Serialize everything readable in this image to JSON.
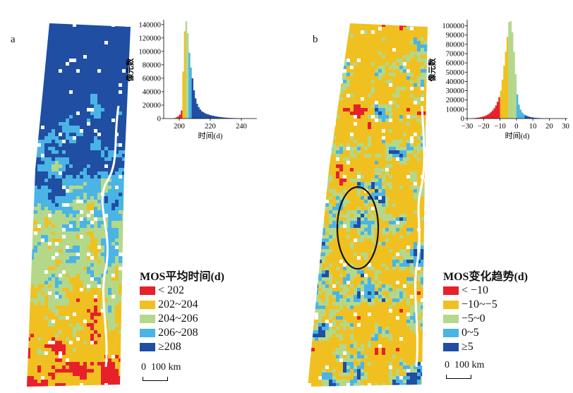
{
  "panels": [
    {
      "letter": "a",
      "map": {
        "color_scheme": "mean-time"
      },
      "histogram": {
        "ylabel": "像元数",
        "xlabel": "时间(d)",
        "xlim": [
          190,
          250
        ],
        "ylim": [
          0,
          145000
        ],
        "xticks": [
          200,
          220,
          240
        ],
        "yticks": [
          0,
          20000,
          40000,
          60000,
          80000,
          100000,
          120000,
          140000
        ],
        "bars": [
          {
            "x": 196,
            "y": 400
          },
          {
            "x": 197,
            "y": 1000
          },
          {
            "x": 198,
            "y": 2000
          },
          {
            "x": 199,
            "y": 3500
          },
          {
            "x": 200,
            "y": 6000
          },
          {
            "x": 201,
            "y": 12000
          },
          {
            "x": 202,
            "y": 70000
          },
          {
            "x": 203,
            "y": 130000
          },
          {
            "x": 204,
            "y": 145000
          },
          {
            "x": 205,
            "y": 127000
          },
          {
            "x": 206,
            "y": 98000
          },
          {
            "x": 207,
            "y": 76000
          },
          {
            "x": 208,
            "y": 60000
          },
          {
            "x": 209,
            "y": 42000
          },
          {
            "x": 210,
            "y": 30000
          },
          {
            "x": 211,
            "y": 22000
          },
          {
            "x": 212,
            "y": 17000
          },
          {
            "x": 213,
            "y": 13500
          },
          {
            "x": 214,
            "y": 11000
          },
          {
            "x": 215,
            "y": 9500
          },
          {
            "x": 216,
            "y": 8000
          },
          {
            "x": 217,
            "y": 7000
          },
          {
            "x": 218,
            "y": 6200
          },
          {
            "x": 219,
            "y": 5500
          },
          {
            "x": 220,
            "y": 4800
          },
          {
            "x": 221,
            "y": 4200
          },
          {
            "x": 222,
            "y": 3800
          },
          {
            "x": 223,
            "y": 3300
          },
          {
            "x": 224,
            "y": 2900
          },
          {
            "x": 225,
            "y": 2500
          },
          {
            "x": 226,
            "y": 2200
          },
          {
            "x": 227,
            "y": 1900
          },
          {
            "x": 228,
            "y": 1600
          },
          {
            "x": 229,
            "y": 1400
          },
          {
            "x": 230,
            "y": 1200
          },
          {
            "x": 231,
            "y": 1000
          },
          {
            "x": 232,
            "y": 900
          },
          {
            "x": 233,
            "y": 800
          },
          {
            "x": 234,
            "y": 700
          },
          {
            "x": 235,
            "y": 600
          },
          {
            "x": 236,
            "y": 500
          },
          {
            "x": 237,
            "y": 400
          },
          {
            "x": 238,
            "y": 350
          },
          {
            "x": 239,
            "y": 300
          },
          {
            "x": 240,
            "y": 250
          },
          {
            "x": 241,
            "y": 200
          },
          {
            "x": 242,
            "y": 150
          },
          {
            "x": 243,
            "y": 120
          }
        ]
      },
      "legend": {
        "title": "MOS平均时间(d)",
        "items": [
          {
            "color": "#e8202a",
            "label": "< 202"
          },
          {
            "color": "#f0c020",
            "label": "202~204"
          },
          {
            "color": "#b4d88a",
            "label": "204~206"
          },
          {
            "color": "#4ab4e6",
            "label": "206~208"
          },
          {
            "color": "#1f4ea3",
            "label": "≥208"
          }
        ]
      },
      "scalebar": {
        "zero": "0",
        "distance": "100 km"
      }
    },
    {
      "letter": "b",
      "map": {
        "color_scheme": "change-trend",
        "annotation": "ellipse"
      },
      "histogram": {
        "ylabel": "像元数",
        "xlabel": "时间(d)",
        "xlim": [
          -30,
          31
        ],
        "ylim": [
          0,
          105000
        ],
        "xticks": [
          -30,
          -20,
          -10,
          0,
          10,
          20,
          30
        ],
        "yticks": [
          0,
          10000,
          20000,
          30000,
          40000,
          50000,
          60000,
          70000,
          80000,
          90000,
          100000
        ],
        "bars": [
          {
            "x": -27,
            "y": 300
          },
          {
            "x": -26,
            "y": 500
          },
          {
            "x": -25,
            "y": 700
          },
          {
            "x": -24,
            "y": 900
          },
          {
            "x": -23,
            "y": 1200
          },
          {
            "x": -22,
            "y": 1600
          },
          {
            "x": -21,
            "y": 2000
          },
          {
            "x": -20,
            "y": 2600
          },
          {
            "x": -19,
            "y": 3300
          },
          {
            "x": -18,
            "y": 4200
          },
          {
            "x": -17,
            "y": 5300
          },
          {
            "x": -16,
            "y": 6800
          },
          {
            "x": -15,
            "y": 8600
          },
          {
            "x": -14,
            "y": 11000
          },
          {
            "x": -13,
            "y": 14000
          },
          {
            "x": -12,
            "y": 18000
          },
          {
            "x": -11,
            "y": 23000
          },
          {
            "x": -10,
            "y": 30000
          },
          {
            "x": -9,
            "y": 42000
          },
          {
            "x": -8,
            "y": 57000
          },
          {
            "x": -7,
            "y": 72000
          },
          {
            "x": -6,
            "y": 88000
          },
          {
            "x": -5,
            "y": 104000
          },
          {
            "x": -4,
            "y": 105000
          },
          {
            "x": -3,
            "y": 93000
          },
          {
            "x": -2,
            "y": 72000
          },
          {
            "x": -1,
            "y": 48000
          },
          {
            "x": 0,
            "y": 26000
          },
          {
            "x": 1,
            "y": 15000
          },
          {
            "x": 2,
            "y": 9500
          },
          {
            "x": 3,
            "y": 6500
          },
          {
            "x": 4,
            "y": 4800
          },
          {
            "x": 5,
            "y": 3500
          },
          {
            "x": 6,
            "y": 2700
          },
          {
            "x": 7,
            "y": 2100
          },
          {
            "x": 8,
            "y": 1600
          },
          {
            "x": 9,
            "y": 1300
          },
          {
            "x": 10,
            "y": 1000
          },
          {
            "x": 11,
            "y": 800
          },
          {
            "x": 12,
            "y": 650
          },
          {
            "x": 13,
            "y": 500
          },
          {
            "x": 14,
            "y": 400
          },
          {
            "x": 15,
            "y": 320
          },
          {
            "x": 16,
            "y": 250
          },
          {
            "x": 17,
            "y": 200
          },
          {
            "x": 18,
            "y": 160
          },
          {
            "x": 19,
            "y": 130
          },
          {
            "x": 20,
            "y": 100
          }
        ]
      },
      "legend": {
        "title": "MOS变化趋势(d)",
        "items": [
          {
            "color": "#e8202a",
            "label": "< −10"
          },
          {
            "color": "#f0c020",
            "label": "−10~−5"
          },
          {
            "color": "#b4d88a",
            "label": "−5~0"
          },
          {
            "color": "#4ab4e6",
            "label": "0~5"
          },
          {
            "color": "#1f4ea3",
            "label": "≥5"
          }
        ]
      },
      "scalebar": {
        "zero": "0",
        "distance": "100 km"
      }
    }
  ]
}
